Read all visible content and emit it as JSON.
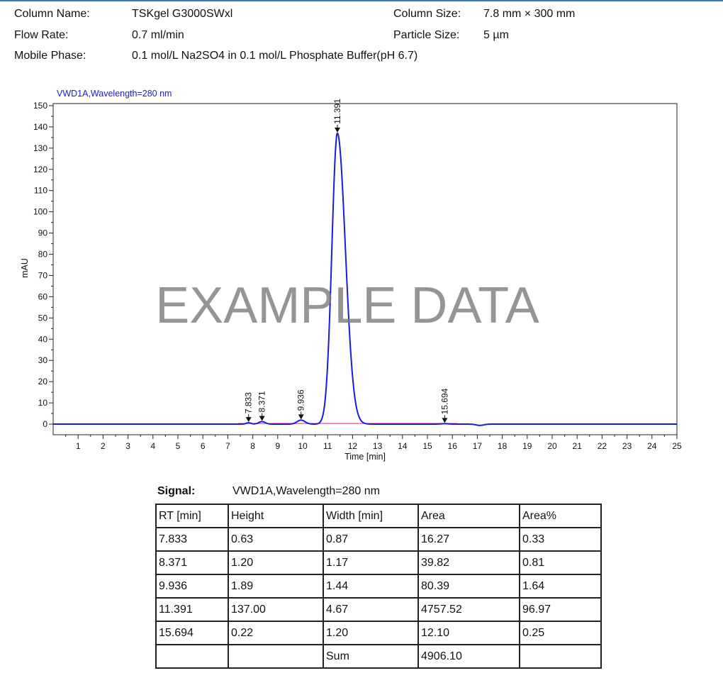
{
  "method": {
    "column_name_label": "Column Name:",
    "column_name": "TSKgel G3000SWxl",
    "column_size_label": "Column Size:",
    "column_size": "7.8 mm × 300 mm",
    "flow_rate_label": "Flow Rate:",
    "flow_rate": "0.7 ml/min",
    "particle_size_label": "Particle Size:",
    "particle_size": "5 µm",
    "mobile_phase_label": "Mobile Phase:",
    "mobile_phase": "0.1 mol/L Na2SO4 in 0.1 mol/L Phosphate Buffer(pH 6.7)"
  },
  "chart_data": {
    "type": "line",
    "title": "VWD1A,Wavelength=280 nm",
    "xlabel": "Time [min]",
    "ylabel": "mAU",
    "watermark": "EXAMPLE DATA",
    "xlim": [
      0,
      25
    ],
    "ylim": [
      -5,
      151
    ],
    "x_ticks": [
      1,
      2,
      3,
      4,
      5,
      6,
      7,
      8,
      9,
      10,
      11,
      12,
      13,
      14,
      15,
      16,
      17,
      18,
      19,
      20,
      21,
      22,
      23,
      24,
      25
    ],
    "y_ticks": [
      0,
      10,
      20,
      30,
      40,
      50,
      60,
      70,
      80,
      90,
      100,
      110,
      120,
      130,
      140,
      150
    ],
    "peaks": [
      {
        "rt": 7.833,
        "height": 0.63,
        "width": 0.87,
        "label": "7.833"
      },
      {
        "rt": 8.371,
        "height": 1.2,
        "width": 1.17,
        "label": "8.371"
      },
      {
        "rt": 9.936,
        "height": 1.89,
        "width": 1.44,
        "label": "9.936"
      },
      {
        "rt": 11.391,
        "height": 137.0,
        "width": 4.67,
        "label": "11.391"
      },
      {
        "rt": 15.694,
        "height": 0.22,
        "width": 1.2,
        "label": "15.694"
      }
    ],
    "series_color": "#1a1adc",
    "baseline_color": "#ff3f9f",
    "grid": false
  },
  "table": {
    "signal_label": "Signal:",
    "signal_value": "VWD1A,Wavelength=280 nm",
    "headers": [
      "RT [min]",
      "Height",
      "Width [min]",
      "Area",
      "Area%"
    ],
    "rows": [
      [
        "7.833",
        "0.63",
        "0.87",
        "16.27",
        "0.33"
      ],
      [
        "8.371",
        "1.20",
        "1.17",
        "39.82",
        "0.81"
      ],
      [
        "9.936",
        "1.89",
        "1.44",
        "80.39",
        "1.64"
      ],
      [
        "11.391",
        "137.00",
        "4.67",
        "4757.52",
        "96.97"
      ],
      [
        "15.694",
        "0.22",
        "1.20",
        "12.10",
        "0.25"
      ],
      [
        "",
        "",
        "Sum",
        "4906.10",
        ""
      ]
    ]
  }
}
